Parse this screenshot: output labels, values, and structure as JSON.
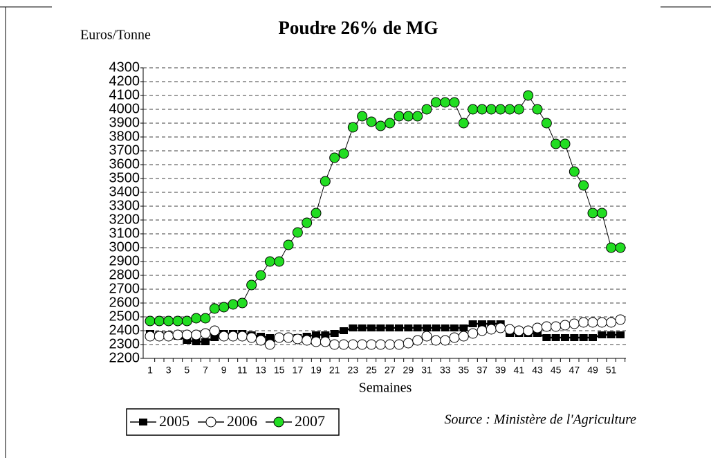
{
  "chart_data": {
    "type": "line",
    "title": "Poudre 26% de MG",
    "y_label": "Euros/Tonne",
    "x_label": "Semaines",
    "source": "Source : Ministère de l'Agriculture",
    "categories": [
      "1",
      null,
      "3",
      null,
      "5",
      null,
      "7",
      null,
      "9",
      null,
      "11",
      null,
      "13",
      null,
      "15",
      null,
      "17",
      null,
      "19",
      null,
      "21",
      null,
      "23",
      null,
      "25",
      null,
      "27",
      null,
      "29",
      null,
      "31",
      null,
      "33",
      null,
      "35",
      null,
      "37",
      null,
      "39",
      null,
      "41",
      null,
      "43",
      null,
      "45",
      null,
      "47",
      null,
      "49",
      null,
      "51",
      null
    ],
    "ylim": [
      2200,
      4300
    ],
    "yticks": [
      2200,
      2300,
      2400,
      2500,
      2600,
      2700,
      2800,
      2900,
      3000,
      3100,
      3200,
      3300,
      3400,
      3500,
      3600,
      3700,
      3800,
      3900,
      4000,
      4100,
      4200,
      4300
    ],
    "grid": true,
    "legend": "bottom-left",
    "series": [
      {
        "name": "2005",
        "color": "#000000",
        "marker": "square",
        "values": [
          2380,
          2370,
          2370,
          2360,
          2330,
          2320,
          2320,
          2350,
          2380,
          2380,
          2380,
          2370,
          2360,
          2350,
          2350,
          2350,
          2350,
          2360,
          2370,
          2370,
          2380,
          2400,
          2420,
          2420,
          2420,
          2420,
          2420,
          2420,
          2420,
          2420,
          2420,
          2420,
          2420,
          2420,
          2420,
          2450,
          2450,
          2450,
          2450,
          2380,
          2380,
          2380,
          2380,
          2350,
          2350,
          2350,
          2350,
          2350,
          2350,
          2370,
          2370,
          2370
        ]
      },
      {
        "name": "2006",
        "color": "#ffffff",
        "marker": "circle",
        "values": [
          2360,
          2360,
          2360,
          2370,
          2370,
          2370,
          2380,
          2400,
          2360,
          2360,
          2360,
          2350,
          2330,
          2300,
          2350,
          2350,
          2340,
          2330,
          2320,
          2320,
          2300,
          2300,
          2300,
          2300,
          2300,
          2300,
          2300,
          2300,
          2310,
          2330,
          2360,
          2330,
          2330,
          2350,
          2360,
          2380,
          2400,
          2410,
          2420,
          2410,
          2400,
          2400,
          2420,
          2430,
          2430,
          2440,
          2450,
          2460,
          2460,
          2460,
          2460,
          2480
        ]
      },
      {
        "name": "2007",
        "color": "#22dd22",
        "marker": "circle",
        "values": [
          2470,
          2470,
          2470,
          2470,
          2470,
          2490,
          2490,
          2560,
          2570,
          2590,
          2600,
          2730,
          2800,
          2900,
          2900,
          3020,
          3110,
          3180,
          3250,
          3480,
          3650,
          3680,
          3870,
          3950,
          3910,
          3880,
          3900,
          3950,
          3950,
          3950,
          4000,
          4050,
          4050,
          4050,
          3900,
          4000,
          4000,
          4000,
          4000,
          4000,
          4000,
          4100,
          4000,
          3900,
          3750,
          3750,
          3550,
          3450,
          3250,
          3250,
          3000,
          3000
        ]
      }
    ]
  }
}
